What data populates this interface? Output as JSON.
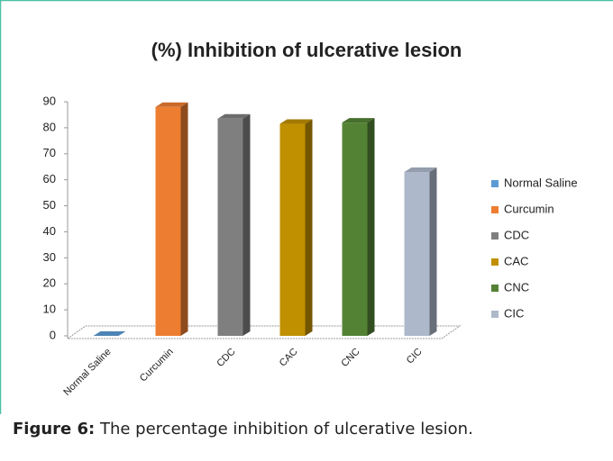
{
  "chart_data": {
    "type": "bar3d",
    "title": "(%) Inhibition  of ulcerative lesion",
    "categories": [
      "Normal Saline",
      "Curcumin",
      "CDC",
      "CAC",
      "CNC",
      "CIC"
    ],
    "values": [
      0,
      88,
      83.5,
      81.5,
      82,
      63
    ],
    "colors": [
      "#5b9bd5",
      "#ed7d31",
      "#7f7f7f",
      "#c09000",
      "#548235",
      "#adb9ca"
    ],
    "ylim": [
      0,
      90
    ],
    "yticks": [
      0,
      10,
      20,
      30,
      40,
      50,
      60,
      70,
      80,
      90
    ],
    "legend": "right"
  },
  "caption": {
    "label": "Figure 6:",
    "text": " The percentage inhibition of ulcerative lesion."
  }
}
